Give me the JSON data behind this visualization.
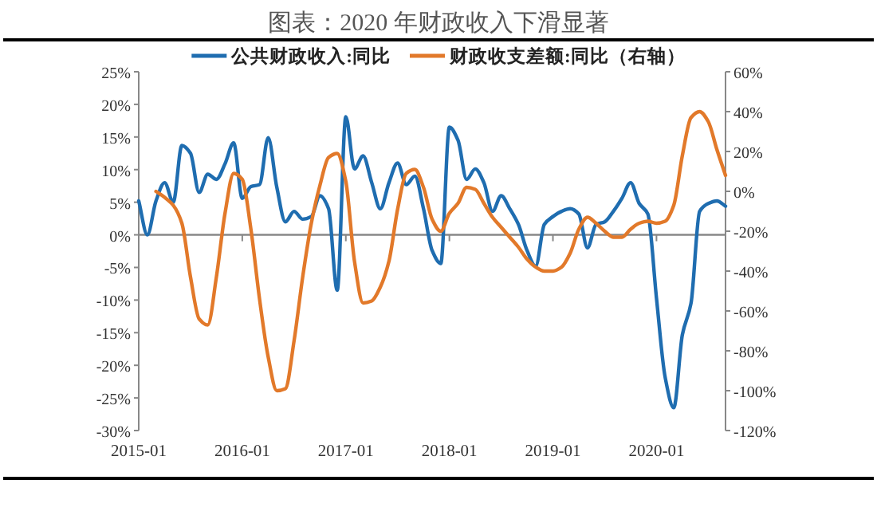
{
  "chart_data": {
    "type": "line",
    "title": "图表：2020 年财政收入下滑显著",
    "legend": "top",
    "x": [
      "2015-01",
      "2015-02",
      "2015-03",
      "2015-04",
      "2015-05",
      "2015-06",
      "2015-07",
      "2015-08",
      "2015-09",
      "2015-10",
      "2015-11",
      "2015-12",
      "2016-01",
      "2016-02",
      "2016-03",
      "2016-04",
      "2016-05",
      "2016-06",
      "2016-07",
      "2016-08",
      "2016-09",
      "2016-10",
      "2016-11",
      "2016-12",
      "2017-01",
      "2017-02",
      "2017-03",
      "2017-04",
      "2017-05",
      "2017-06",
      "2017-07",
      "2017-08",
      "2017-09",
      "2017-10",
      "2017-11",
      "2017-12",
      "2018-01",
      "2018-02",
      "2018-03",
      "2018-04",
      "2018-05",
      "2018-06",
      "2018-07",
      "2018-08",
      "2018-09",
      "2018-10",
      "2018-11",
      "2018-12",
      "2019-01",
      "2019-02",
      "2019-03",
      "2019-04",
      "2019-05",
      "2019-06",
      "2019-07",
      "2019-08",
      "2019-09",
      "2019-10",
      "2019-11",
      "2019-12",
      "2020-01",
      "2020-02",
      "2020-03",
      "2020-04",
      "2020-05",
      "2020-06",
      "2020-07",
      "2020-08",
      "2020-09"
    ],
    "xlim": [
      "2015-01",
      "2020-09"
    ],
    "xticks": [
      "2015-01",
      "2016-01",
      "2017-01",
      "2018-01",
      "2019-01",
      "2020-01"
    ],
    "ylim": [
      -30,
      25
    ],
    "yticks": [
      {
        "value": -30,
        "label": "-30%"
      },
      {
        "value": -25,
        "label": "-25%"
      },
      {
        "value": -20,
        "label": "-20%"
      },
      {
        "value": -15,
        "label": "-15%"
      },
      {
        "value": -10,
        "label": "-10%"
      },
      {
        "value": -5,
        "label": "-5%"
      },
      {
        "value": 0,
        "label": "0%"
      },
      {
        "value": 5,
        "label": "5%"
      },
      {
        "value": 10,
        "label": "10%"
      },
      {
        "value": 15,
        "label": "15%"
      },
      {
        "value": 20,
        "label": "20%"
      },
      {
        "value": 25,
        "label": "25%"
      }
    ],
    "y2lim": [
      -120,
      60
    ],
    "y2ticks": [
      {
        "value": -120,
        "label": "-120%"
      },
      {
        "value": -100,
        "label": "-100%"
      },
      {
        "value": -80,
        "label": "-80%"
      },
      {
        "value": -60,
        "label": "-60%"
      },
      {
        "value": -40,
        "label": "-40%"
      },
      {
        "value": -20,
        "label": "-20%"
      },
      {
        "value": 0,
        "label": "0%"
      },
      {
        "value": 20,
        "label": "20%"
      },
      {
        "value": 40,
        "label": "40%"
      },
      {
        "value": 60,
        "label": "60%"
      }
    ],
    "series": [
      {
        "name": "公共财政收入:同比",
        "color": "#1f6db0",
        "values": [
          5.2,
          0,
          5.2,
          8,
          5,
          13.7,
          12.5,
          6.5,
          9.3,
          8.5,
          10.9,
          14.1,
          5.6,
          7.4,
          7.7,
          14.9,
          7.3,
          2,
          3.6,
          2.4,
          2.8,
          6,
          4,
          -8.5,
          18.1,
          10.1,
          12.1,
          8,
          4,
          8,
          11,
          7.7,
          9,
          4,
          -2.4,
          -4.4,
          16.5,
          14.5,
          8.5,
          10.1,
          8,
          3.6,
          6,
          4,
          1.6,
          -2.4,
          -4.8,
          1.6,
          2.8,
          3.6,
          4,
          3.2,
          -2,
          1.6,
          2,
          3.6,
          5.6,
          8,
          4.8,
          3.2,
          -9.7,
          -21.8,
          -26.5,
          -15.3,
          -10.5,
          3.6,
          4.8,
          5.2,
          4.4
        ]
      },
      {
        "name": "财政收支差额:同比（右轴）",
        "color": "#e2792a",
        "axis": "y2",
        "values": [
          null,
          null,
          0,
          -3,
          -7,
          -16,
          -43,
          -64,
          -67,
          -43,
          -11,
          9,
          6,
          -19,
          -54,
          -83,
          -100,
          -99,
          -75,
          -43,
          -16,
          3,
          17,
          19,
          5,
          -35,
          -56,
          -55,
          -48,
          -35,
          -9,
          9,
          11,
          2,
          -14,
          -20,
          -11,
          -6,
          2,
          1,
          -6,
          -13,
          -18,
          -23,
          -28,
          -34,
          -38,
          -40,
          -40,
          -38,
          -31,
          -19,
          -13,
          -16,
          -20,
          -23,
          -23,
          -19,
          -16,
          -15,
          -16,
          -15,
          -7,
          18,
          37,
          40,
          35,
          21,
          8
        ]
      }
    ]
  }
}
